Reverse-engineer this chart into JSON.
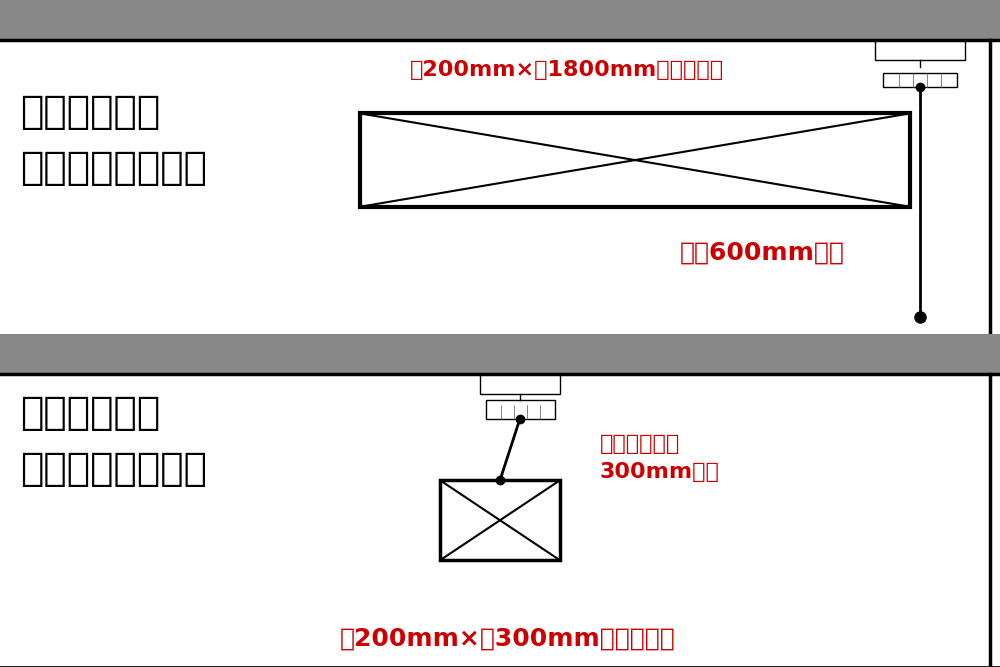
{
  "bg_top": "#ffffff",
  "bg_divider": "#888888",
  "bg_bottom": "#ffffff",
  "black": "#000000",
  "red": "#cc0000",
  "gray": "#888888",
  "light_gray": "#cccccc",
  "dark_gray": "#555555",
  "panel1_title": "煙感知器免除\nとなる基準（１）",
  "panel1_label1": "縦200mm×横1800mm以上の開口",
  "panel1_label2": "下方600mm未満",
  "panel2_title": "煙感知器免除\nとなる基準（２）",
  "panel2_label1": "煙感知器から\n300mm以内",
  "panel2_label2": "縦200mm×縦300mm以上の開口",
  "title_fontsize": 28,
  "label_fontsize": 16,
  "label2_fontsize": 18
}
